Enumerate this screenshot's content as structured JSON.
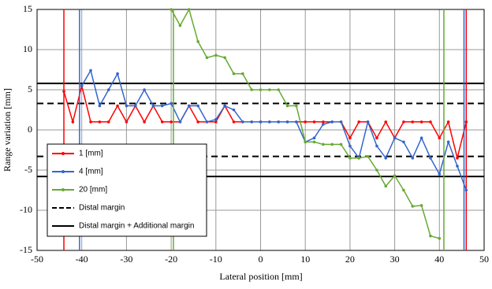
{
  "chart_data": {
    "type": "line",
    "xlabel": "Lateral position [mm]",
    "ylabel": "Range variation [mm]",
    "xlim": [
      -50,
      50
    ],
    "xticks": [
      -50,
      -40,
      -30,
      -20,
      -10,
      0,
      10,
      20,
      30,
      40,
      50
    ],
    "ylim": [
      -15,
      15
    ],
    "yticks": [
      -15,
      -10,
      -5,
      0,
      5,
      10,
      15
    ],
    "grid": true,
    "legend": "lower left",
    "series": [
      {
        "name": "1 [mm]",
        "color": "#ff0000",
        "bounds": [
          -44,
          46
        ],
        "x": [
          -44,
          -42,
          -40,
          -38,
          -36,
          -34,
          -32,
          -30,
          -28,
          -26,
          -24,
          -22,
          -20,
          -18,
          -16,
          -14,
          -12,
          -10,
          -8,
          -6,
          -4,
          -2,
          0,
          2,
          4,
          6,
          8,
          10,
          12,
          14,
          16,
          18,
          20,
          22,
          24,
          26,
          28,
          30,
          32,
          34,
          36,
          38,
          40,
          42,
          44,
          46
        ],
        "values": [
          4.8,
          1,
          5.5,
          1,
          1,
          1,
          3,
          1,
          3,
          1,
          3,
          1,
          1,
          1,
          3,
          1,
          1,
          1,
          3,
          1,
          1,
          1,
          1,
          1,
          1,
          1,
          1,
          1,
          1,
          1,
          1,
          1,
          -1,
          1,
          1,
          -1,
          1,
          -1,
          1,
          1,
          1,
          1,
          -1,
          1,
          -3.5,
          1
        ]
      },
      {
        "name": "4 [mm]",
        "color": "#3366cc",
        "bounds": [
          -40.5,
          45.5
        ],
        "x": [
          -40,
          -38,
          -36,
          -34,
          -32,
          -30,
          -28,
          -26,
          -24,
          -22,
          -20,
          -18,
          -16,
          -14,
          -12,
          -10,
          -8,
          -6,
          -4,
          -2,
          0,
          2,
          4,
          6,
          8,
          10,
          12,
          14,
          16,
          18,
          20,
          22,
          24,
          26,
          28,
          30,
          32,
          34,
          36,
          38,
          40,
          42,
          44,
          46
        ],
        "values": [
          5.5,
          7.4,
          3,
          5,
          7,
          3,
          3,
          5,
          3,
          3,
          3.3,
          1,
          3,
          3,
          1,
          1.3,
          3,
          2.5,
          1,
          1,
          1,
          1,
          1,
          1,
          1,
          -1.5,
          -1,
          0.7,
          1,
          1,
          -2,
          -3.5,
          1,
          -2,
          -3.5,
          -1,
          -1.5,
          -3.5,
          -1,
          -3.5,
          -5.5,
          -1.5,
          -4.5,
          -7.5
        ]
      },
      {
        "name": "20 [mm]",
        "color": "#66aa33",
        "bounds": [
          -19.5,
          41
        ],
        "x": [
          -20,
          -18,
          -16,
          -14,
          -12,
          -10,
          -8,
          -6,
          -4,
          -2,
          0,
          2,
          4,
          6,
          8,
          10,
          12,
          14,
          16,
          18,
          20,
          22,
          24,
          26,
          28,
          30,
          32,
          34,
          36,
          38,
          40
        ],
        "values": [
          15,
          13,
          15,
          11,
          9,
          9.3,
          9,
          7,
          7,
          5,
          5,
          5,
          5,
          3,
          3,
          -1.5,
          -1.5,
          -1.8,
          -1.8,
          -1.8,
          -3.5,
          -3.5,
          -3.3,
          -5,
          -7,
          -5.7,
          -7.5,
          -9.5,
          -9.4,
          -13.2,
          -13.5
        ]
      }
    ],
    "reference_lines": [
      {
        "name": "Distal margin",
        "values": [
          3.3,
          -3.3
        ],
        "dashed": true,
        "color": "#000000"
      },
      {
        "name": "Distal margin + Additional margin",
        "values": [
          5.8,
          -5.8
        ],
        "dashed": false,
        "color": "#000000"
      }
    ]
  }
}
